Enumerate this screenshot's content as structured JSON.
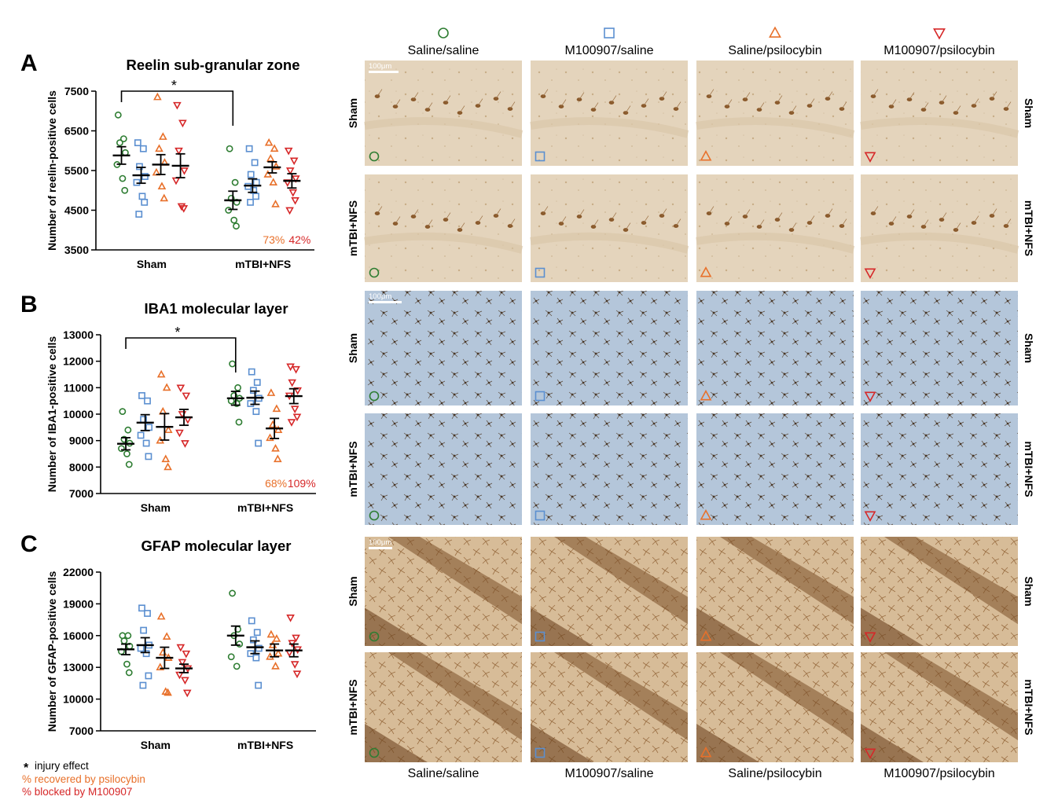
{
  "groups": [
    {
      "name": "Saline/saline",
      "marker": "circle",
      "color": "#2e7d32"
    },
    {
      "name": "M100907/saline",
      "marker": "square",
      "color": "#5b8fd0"
    },
    {
      "name": "Saline/psilocybin",
      "marker": "triangle-up",
      "color": "#e8702a"
    },
    {
      "name": "M100907/psilocybin",
      "marker": "triangle-down",
      "color": "#d62728"
    }
  ],
  "chart_data": [
    {
      "type": "scatter",
      "panel_letter": "A",
      "title": "Reelin  sub-granular zone",
      "ylabel": "Number of reelin-positive cells",
      "xlabel": "",
      "categories": [
        "Sham",
        "mTBI+NFS"
      ],
      "ylim": [
        3500,
        7500
      ],
      "yticks": [
        3500,
        4500,
        5500,
        6500,
        7500
      ],
      "significance": {
        "from": "Sham",
        "to": "mTBI+NFS",
        "label": "*"
      },
      "percent_labels": {
        "recovered": "73%",
        "blocked": "42%"
      },
      "series": [
        {
          "name": "Saline/saline",
          "mean": [
            5880,
            4750
          ],
          "sem": [
            220,
            230
          ],
          "points": [
            [
              6900,
              6300,
              6200,
              5950,
              5650,
              5300,
              5000
            ],
            [
              6050,
              5200,
              4800,
              4700,
              4500,
              4250,
              4100
            ]
          ]
        },
        {
          "name": "M100907/saline",
          "mean": [
            5380,
            5120
          ],
          "sem": [
            200,
            170
          ],
          "points": [
            [
              6200,
              6050,
              5600,
              5350,
              5200,
              4850,
              4700,
              4400
            ],
            [
              6050,
              5700,
              5400,
              5200,
              5100,
              5000,
              4850,
              4700
            ]
          ]
        },
        {
          "name": "Saline/psilocybin",
          "mean": [
            5650,
            5580
          ],
          "sem": [
            250,
            140
          ],
          "points": [
            [
              7350,
              6350,
              6050,
              5700,
              5450,
              5100,
              4800
            ],
            [
              6200,
              6050,
              5800,
              5600,
              5400,
              5200,
              4650
            ]
          ]
        },
        {
          "name": "M100907/psilocybin",
          "mean": [
            5620,
            5240
          ],
          "sem": [
            300,
            180
          ],
          "points": [
            [
              7150,
              6700,
              6000,
              5500,
              5250,
              4600,
              4550
            ],
            [
              6000,
              5750,
              5500,
              5300,
              5200,
              4950,
              4750,
              4500
            ]
          ]
        }
      ]
    },
    {
      "type": "scatter",
      "panel_letter": "B",
      "title": "IBA1 molecular layer",
      "ylabel": "Number of IBA1-positive cells",
      "xlabel": "",
      "categories": [
        "Sham",
        "mTBI+NFS"
      ],
      "ylim": [
        7000,
        13000
      ],
      "yticks": [
        7000,
        8000,
        9000,
        10000,
        11000,
        12000,
        13000
      ],
      "significance": {
        "from": "Sham",
        "to": "mTBI+NFS",
        "label": "*"
      },
      "percent_labels": {
        "recovered": "68%",
        "blocked": "109%"
      },
      "series": [
        {
          "name": "Saline/saline",
          "mean": [
            8880,
            10600
          ],
          "sem": [
            230,
            260
          ],
          "points": [
            [
              10100,
              9400,
              9050,
              8900,
              8700,
              8500,
              8100
            ],
            [
              11900,
              11000,
              10700,
              10600,
              10500,
              10400,
              9700
            ]
          ]
        },
        {
          "name": "M100907/saline",
          "mean": [
            9680,
            10620
          ],
          "sem": [
            300,
            250
          ],
          "points": [
            [
              10700,
              10500,
              9800,
              9500,
              9200,
              8900,
              8400
            ],
            [
              11600,
              11200,
              10900,
              10600,
              10400,
              10100,
              8900
            ]
          ]
        },
        {
          "name": "Saline/psilocybin",
          "mean": [
            9520,
            9460
          ],
          "sem": [
            500,
            380
          ],
          "points": [
            [
              11500,
              11000,
              10100,
              9400,
              9000,
              8300,
              8000
            ],
            [
              10800,
              10200,
              9600,
              9400,
              9100,
              8700,
              8300
            ]
          ]
        },
        {
          "name": "M100907/psilocybin",
          "mean": [
            9880,
            10680
          ],
          "sem": [
            300,
            280
          ],
          "points": [
            [
              11000,
              10700,
              10000,
              9800,
              9300,
              8900
            ],
            [
              11800,
              11700,
              11200,
              10900,
              10700,
              10200,
              9900,
              9700
            ]
          ]
        }
      ]
    },
    {
      "type": "scatter",
      "panel_letter": "C",
      "title": "GFAP molecular layer",
      "ylabel": "Number of GFAP-positive cells",
      "xlabel": "",
      "categories": [
        "Sham",
        "mTBI+NFS"
      ],
      "ylim": [
        7000,
        22000
      ],
      "yticks": [
        7000,
        10000,
        13000,
        16000,
        19000,
        22000
      ],
      "significance": null,
      "percent_labels": null,
      "series": [
        {
          "name": "Saline/saline",
          "mean": [
            14700,
            16000
          ],
          "sem": [
            500,
            900
          ],
          "points": [
            [
              16000,
              16000,
              15500,
              15000,
              14500,
              13300,
              12500
            ],
            [
              20000,
              16600,
              16000,
              15200,
              14000,
              13100
            ]
          ]
        },
        {
          "name": "M100907/saline",
          "mean": [
            15100,
            14900
          ],
          "sem": [
            700,
            600
          ],
          "points": [
            [
              18600,
              18100,
              16500,
              15100,
              14800,
              14300,
              12200,
              11300
            ],
            [
              17400,
              16300,
              15600,
              14800,
              14300,
              13900,
              11300
            ]
          ]
        },
        {
          "name": "Saline/psilocybin",
          "mean": [
            13900,
            14600
          ],
          "sem": [
            1000,
            600
          ],
          "points": [
            [
              17800,
              15900,
              14400,
              13900,
              13000,
              10700,
              10600
            ],
            [
              16100,
              15700,
              15100,
              14300,
              14000,
              13100
            ]
          ]
        },
        {
          "name": "M100907/psilocybin",
          "mean": [
            12900,
            14600
          ],
          "sem": [
            400,
            600
          ],
          "points": [
            [
              14900,
              14300,
              13500,
              12900,
              12300,
              11800,
              10600
            ],
            [
              17700,
              15800,
              15300,
              14700,
              14400,
              13300,
              12400
            ]
          ]
        }
      ]
    }
  ],
  "legend": {
    "injury": "injury effect",
    "injury_symbol": "*",
    "recovered": "% recovered by psilocybin",
    "blocked": "% blocked by  M100907",
    "recovered_color": "#e8702a",
    "blocked_color": "#d62728"
  },
  "micrographs": {
    "top_headers": [
      "Saline/saline",
      "M100907/saline",
      "Saline/psilocybin",
      "M100907/psilocybin"
    ],
    "bottom_labels": [
      "Saline/saline",
      "M100907/saline",
      "Saline/psilocybin",
      "M100907/psilocybin"
    ],
    "row_labels": [
      "Sham",
      "mTBI+NFS",
      "Sham",
      "mTBI+NFS",
      "Sham",
      "mTBI+NFS"
    ],
    "scale_bar": "100μm",
    "stain_colors": {
      "reelin": "#e2d2ba",
      "iba1": "#b3c4d8",
      "gfap": "#cfb08a"
    }
  }
}
